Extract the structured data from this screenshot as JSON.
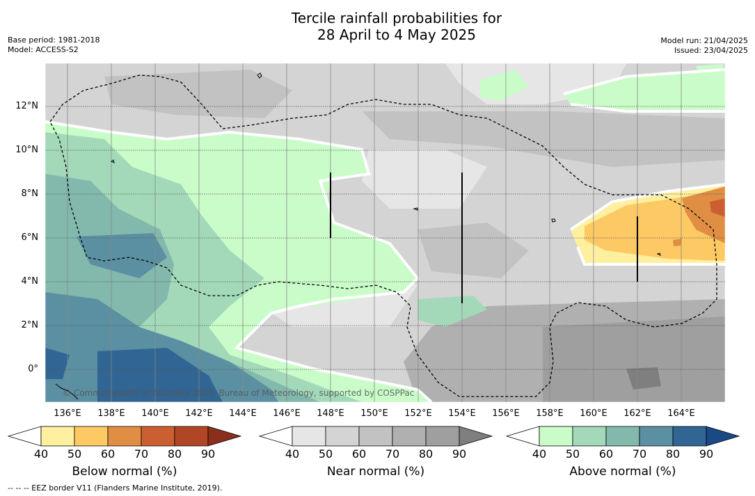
{
  "title_line1": "Tercile rainfall probabilities for",
  "title_line2": "28 April to 4 May 2025",
  "base_period": "Base period: 1981-2018",
  "model": "Model: ACCESS-S2",
  "model_run": "Model run: 21/04/2025",
  "issued": "Issued: 23/04/2025",
  "copyright": "© Commonwealth of Australia 2025, Bureau of Meteorology, supported by COSPPac",
  "footer": "--  --  -- EEZ border V11 (Flanders Marine Institute, 2019).",
  "lon_labels": [
    "136°E",
    "138°E",
    "140°E",
    "142°E",
    "144°E",
    "146°E",
    "148°E",
    "150°E",
    "152°E",
    "154°E",
    "156°E",
    "158°E",
    "160°E",
    "162°E",
    "164°E"
  ],
  "lat_labels": [
    "12°N",
    "10°N",
    "8°N",
    "6°N",
    "4°N",
    "2°N",
    "0°"
  ],
  "colorbars": [
    {
      "title": "Below normal (%)",
      "ticks": [
        "40",
        "50",
        "60",
        "70",
        "80",
        "90"
      ],
      "colors": [
        "#ffffff",
        "#fff0a0",
        "#fdc964",
        "#e08e44",
        "#cc5f31",
        "#b04625",
        "#8a2f1c"
      ]
    },
    {
      "title": "Near normal (%)",
      "ticks": [
        "40",
        "50",
        "60",
        "70",
        "80",
        "90"
      ],
      "colors": [
        "#ffffff",
        "#e6e6e6",
        "#d4d4d4",
        "#c2c2c2",
        "#b0b0b0",
        "#9f9f9f",
        "#7f7f7f"
      ]
    },
    {
      "title": "Above normal (%)",
      "ticks": [
        "40",
        "50",
        "60",
        "70",
        "80",
        "90"
      ],
      "colors": [
        "#ffffff",
        "#c9fcc9",
        "#a3d9b9",
        "#83b8ad",
        "#5a90a2",
        "#316593",
        "#1a4a86"
      ]
    }
  ]
}
